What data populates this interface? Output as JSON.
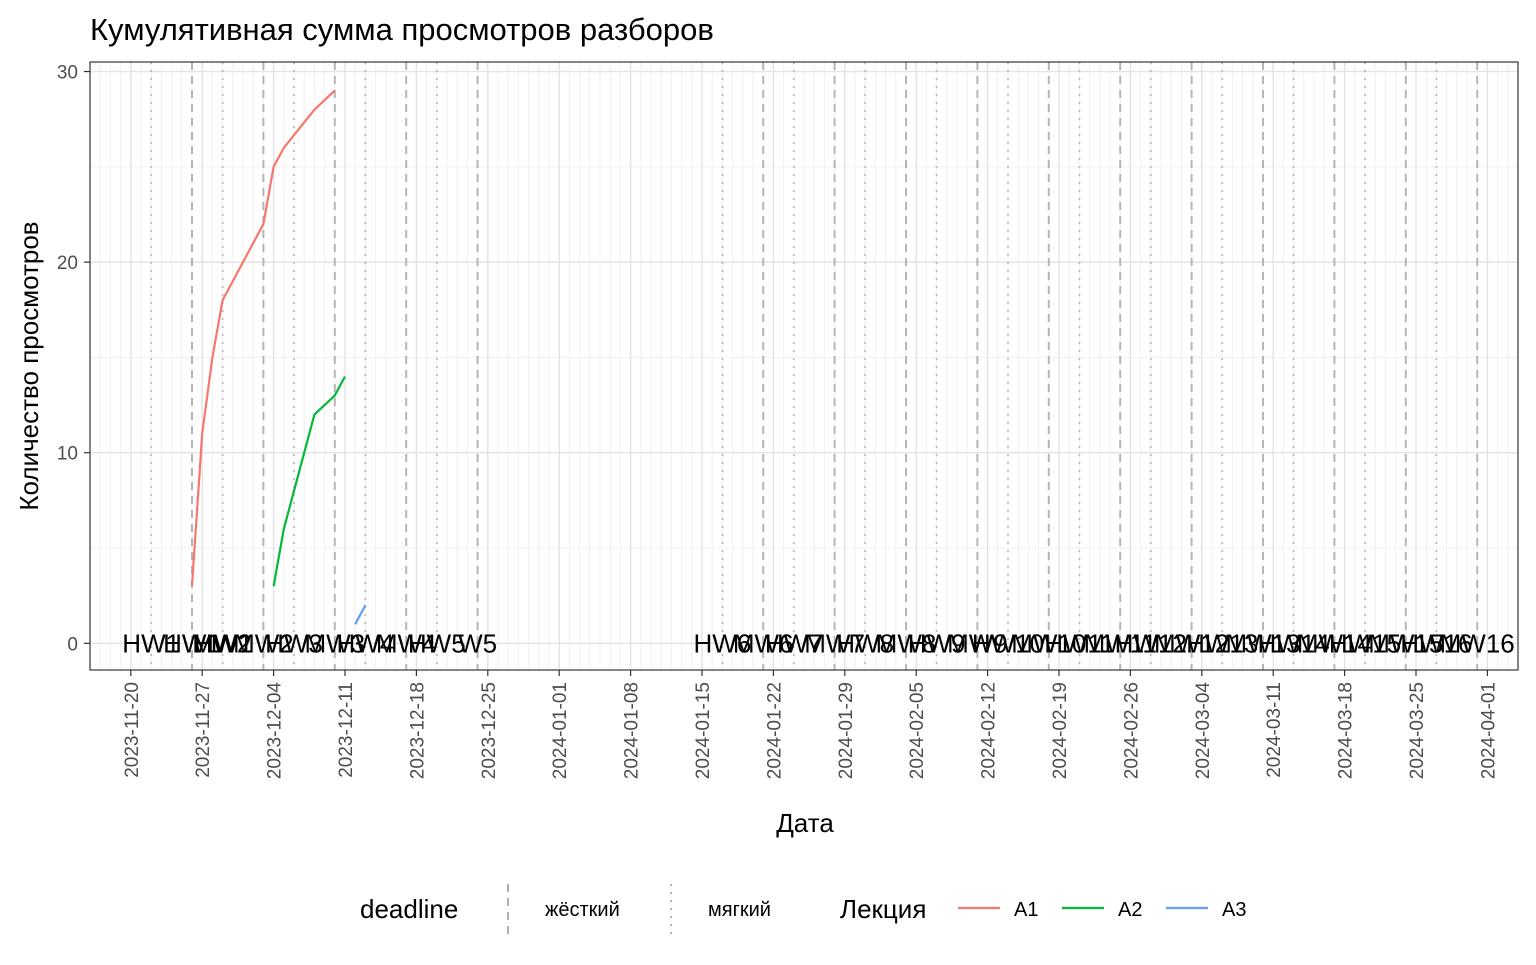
{
  "chart_data": {
    "type": "line",
    "title": "Кумулятивная сумма просмотров разборов",
    "xlabel": "Дата",
    "ylabel": "Количество просмотров",
    "ylim": [
      -1.4,
      30.5
    ],
    "xlim": [
      "2023-11-16",
      "2024-04-04"
    ],
    "y_ticks": [
      0,
      10,
      20,
      30
    ],
    "x_ticks": [
      "2023-11-20",
      "2023-11-27",
      "2023-12-04",
      "2023-12-11",
      "2023-12-18",
      "2023-12-25",
      "2024-01-01",
      "2024-01-08",
      "2024-01-15",
      "2024-01-22",
      "2024-01-29",
      "2024-02-05",
      "2024-02-12",
      "2024-02-19",
      "2024-02-26",
      "2024-03-04",
      "2024-03-11",
      "2024-03-18",
      "2024-03-25",
      "2024-04-01"
    ],
    "grid": true,
    "legend_position": "bottom",
    "series": [
      {
        "name": "A1",
        "color": "#F8766D",
        "points": [
          [
            "2023-11-26",
            3
          ],
          [
            "2023-11-27",
            11
          ],
          [
            "2023-11-28",
            15
          ],
          [
            "2023-11-29",
            18
          ],
          [
            "2023-12-03",
            22
          ],
          [
            "2023-12-04",
            25
          ],
          [
            "2023-12-05",
            26
          ],
          [
            "2023-12-08",
            28
          ],
          [
            "2023-12-10",
            29
          ]
        ]
      },
      {
        "name": "A2",
        "color": "#00BA38",
        "points": [
          [
            "2023-12-04",
            3
          ],
          [
            "2023-12-05",
            6
          ],
          [
            "2023-12-06",
            8
          ],
          [
            "2023-12-08",
            12
          ],
          [
            "2023-12-10",
            13
          ],
          [
            "2023-12-11",
            14
          ]
        ]
      },
      {
        "name": "A3",
        "color": "#619CFF",
        "points": [
          [
            "2023-12-12",
            1
          ],
          [
            "2023-12-13",
            2
          ]
        ]
      }
    ],
    "deadlines": [
      {
        "label": "HW1",
        "date": "2023-11-22",
        "type": "мягкий"
      },
      {
        "label": "HW1",
        "date": "2023-11-26",
        "type": "жёсткий"
      },
      {
        "label": "MW1",
        "date": "2023-11-29",
        "type": "мягкий"
      },
      {
        "label": "HW2",
        "date": "2023-11-29",
        "type": "мягкий"
      },
      {
        "label": "MW2",
        "date": "2023-12-03",
        "type": "жёсткий"
      },
      {
        "label": "HW3",
        "date": "2023-12-06",
        "type": "мягкий"
      },
      {
        "label": "MW3",
        "date": "2023-12-10",
        "type": "жёсткий"
      },
      {
        "label": "HW4",
        "date": "2023-12-13",
        "type": "мягкий"
      },
      {
        "label": "MW4",
        "date": "2023-12-17",
        "type": "жёсткий"
      },
      {
        "label": "HW5",
        "date": "2023-12-20",
        "type": "мягкий"
      },
      {
        "label": "W5",
        "date": "2023-12-24",
        "type": "жёсткий"
      },
      {
        "label": "HW6",
        "date": "2024-01-17",
        "type": "мягкий"
      },
      {
        "label": "MW6",
        "date": "2024-01-21",
        "type": "жёсткий"
      },
      {
        "label": "HW7",
        "date": "2024-01-24",
        "type": "мягкий"
      },
      {
        "label": "MW7",
        "date": "2024-01-28",
        "type": "жёсткий"
      },
      {
        "label": "HW8",
        "date": "2024-01-31",
        "type": "мягкий"
      },
      {
        "label": "MW8",
        "date": "2024-02-04",
        "type": "жёсткий"
      },
      {
        "label": "HW9",
        "date": "2024-02-07",
        "type": "мягкий"
      },
      {
        "label": "MW9",
        "date": "2024-02-11",
        "type": "жёсткий"
      },
      {
        "label": "HW10",
        "date": "2024-02-14",
        "type": "мягкий"
      },
      {
        "label": "MW10",
        "date": "2024-02-18",
        "type": "жёсткий"
      },
      {
        "label": "HW11",
        "date": "2024-02-21",
        "type": "мягкий"
      },
      {
        "label": "MW11",
        "date": "2024-02-25",
        "type": "жёсткий"
      },
      {
        "label": "HW12",
        "date": "2024-02-28",
        "type": "мягкий"
      },
      {
        "label": "MW12",
        "date": "2024-03-03",
        "type": "жёсткий"
      },
      {
        "label": "HW13",
        "date": "2024-03-06",
        "type": "мягкий"
      },
      {
        "label": "MW13",
        "date": "2024-03-10",
        "type": "жёсткий"
      },
      {
        "label": "HW14",
        "date": "2024-03-13",
        "type": "мягкий"
      },
      {
        "label": "MW14",
        "date": "2024-03-17",
        "type": "жёсткий"
      },
      {
        "label": "HW15",
        "date": "2024-03-20",
        "type": "мягкий"
      },
      {
        "label": "MW15",
        "date": "2024-03-24",
        "type": "жёсткий"
      },
      {
        "label": "HW16",
        "date": "2024-03-27",
        "type": "мягкий"
      },
      {
        "label": "MW16",
        "date": "2024-03-31",
        "type": "жёсткий"
      }
    ],
    "legend": {
      "deadline_title": "deadline",
      "deadline_items": [
        {
          "label": "жёсткий",
          "style": "dashed"
        },
        {
          "label": "мягкий",
          "style": "dotted"
        }
      ],
      "lecture_title": "Лекция",
      "lecture_items": [
        {
          "label": "A1",
          "color": "#F8766D"
        },
        {
          "label": "A2",
          "color": "#00BA38"
        },
        {
          "label": "A3",
          "color": "#619CFF"
        }
      ]
    }
  }
}
